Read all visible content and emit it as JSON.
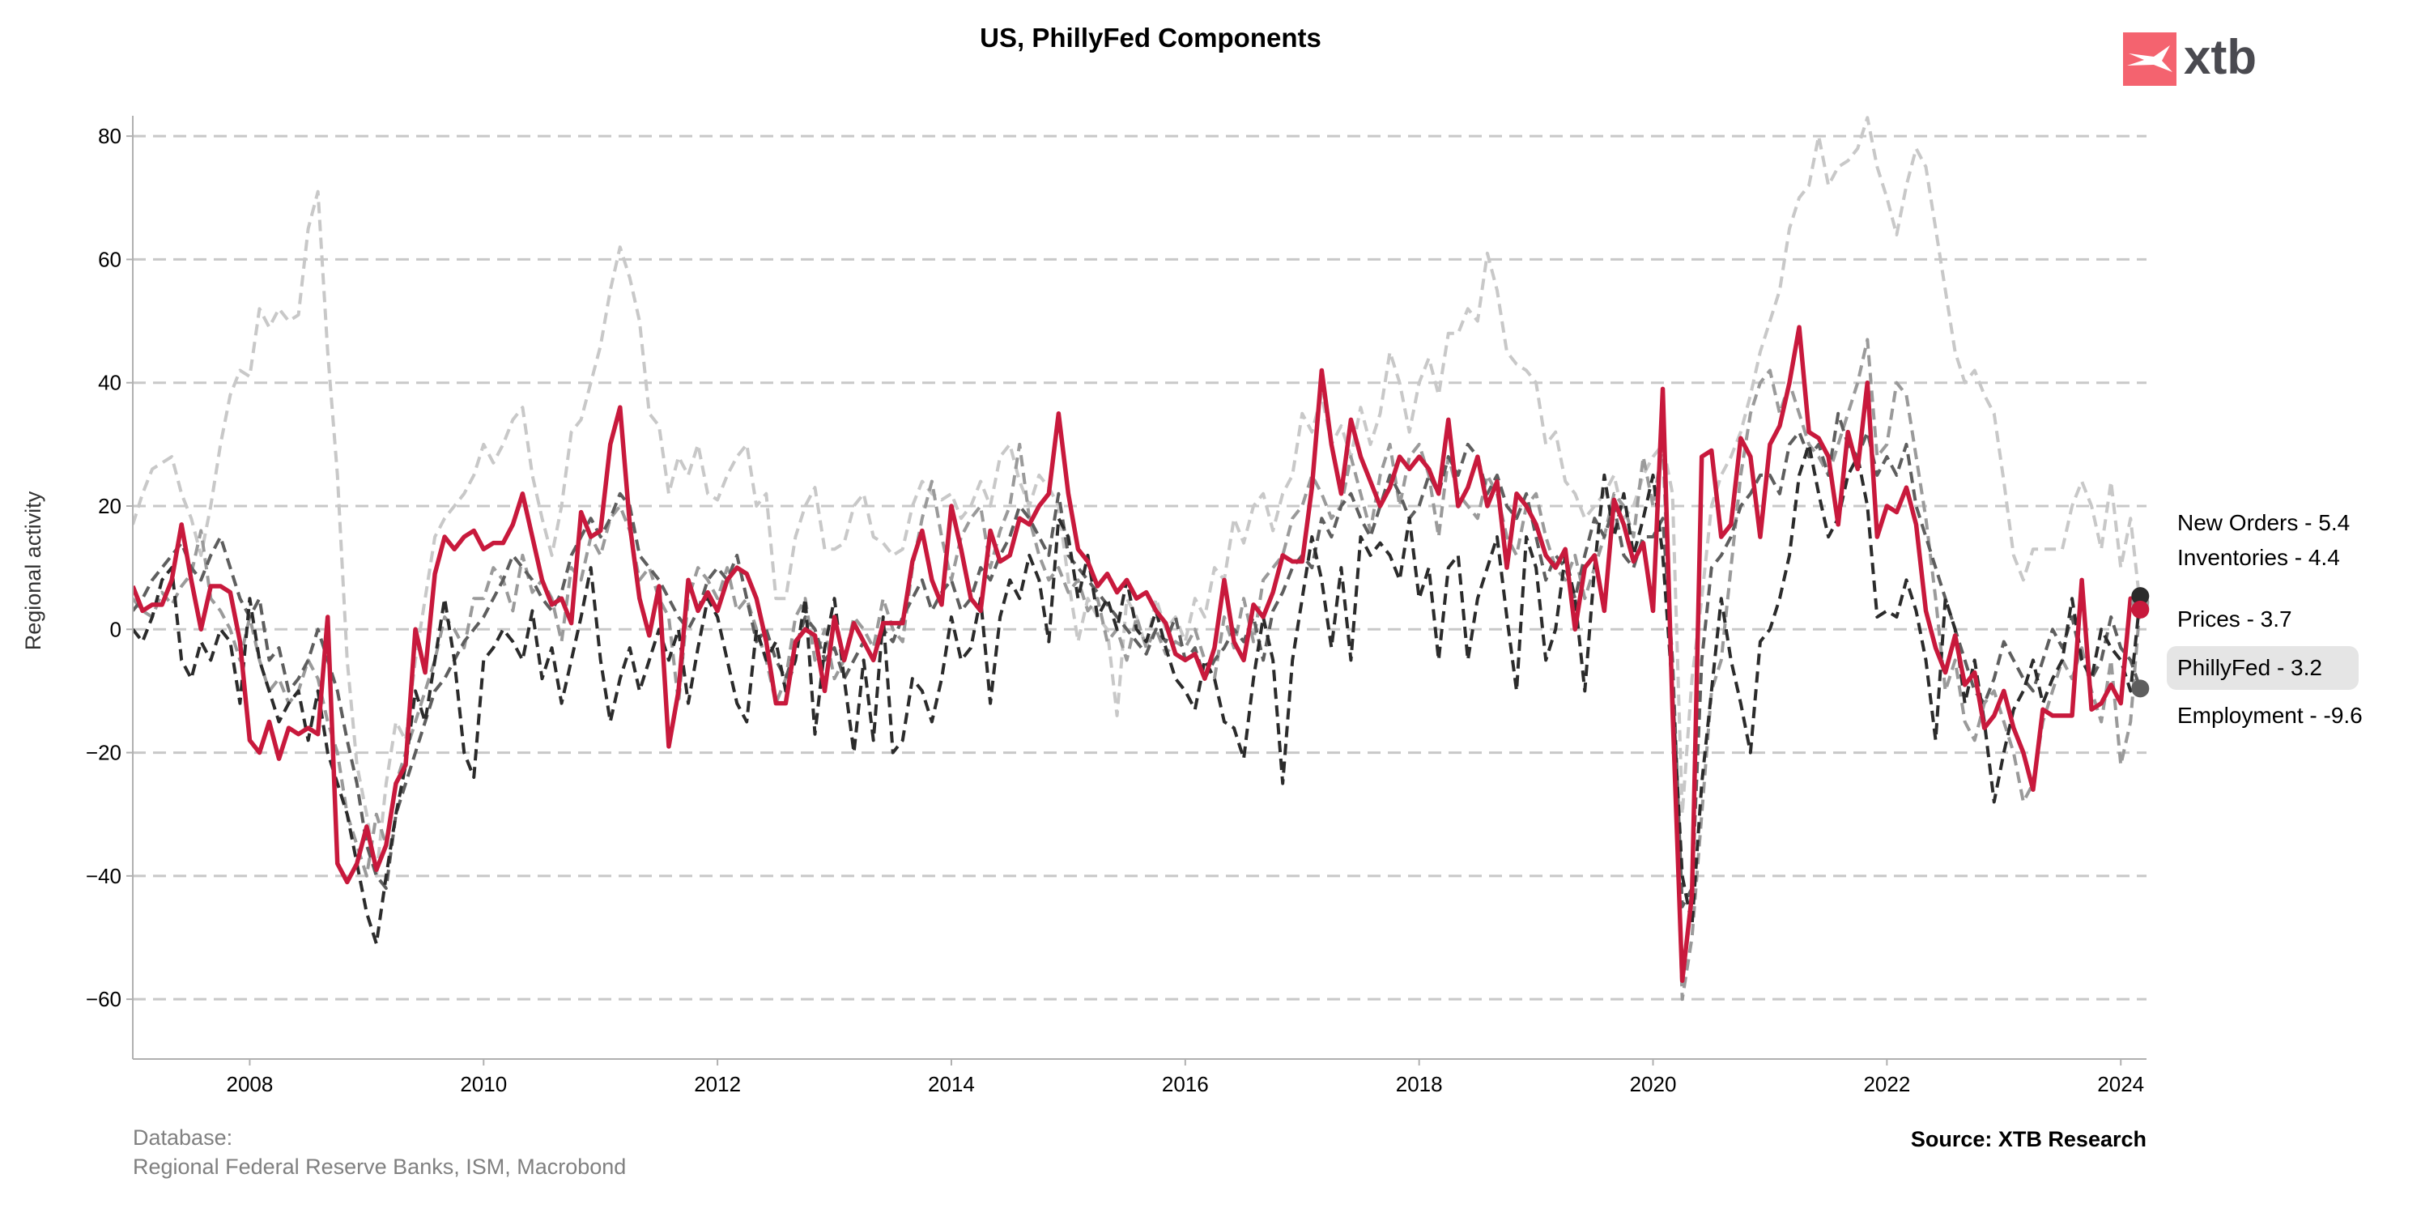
{
  "chart_data": {
    "type": "line",
    "title": "US, PhillyFed Components",
    "xlabel": "",
    "ylabel": "Regional activity",
    "xlim": [
      2007.0,
      2024.22
    ],
    "ylim": [
      -69.7,
      83.3
    ],
    "grid": "horizontal dashed",
    "x_start": "2007-01",
    "frequency": "monthly",
    "x_ticks": [
      "2008",
      "2010",
      "2012",
      "2014",
      "2016",
      "2018",
      "2020",
      "2022",
      "2024"
    ],
    "y_ticks": [
      "80",
      "60",
      "40",
      "20",
      "0",
      "−20",
      "−40",
      "−60"
    ],
    "series": [
      {
        "name": "Prices",
        "label": "Prices - 3.7",
        "color": "#c8c8c8",
        "dashed": true,
        "values": [
          17,
          22,
          26,
          27,
          28,
          22,
          18,
          12,
          20,
          30,
          38,
          42,
          41,
          52,
          49,
          52,
          50,
          51,
          65,
          71,
          45,
          25,
          -5,
          -22,
          -30,
          -40,
          -25,
          -15,
          -18,
          -5,
          5,
          15,
          18,
          20,
          22,
          25,
          30,
          27,
          30,
          34,
          36,
          25,
          18,
          12,
          20,
          32,
          34,
          40,
          46,
          55,
          62,
          57,
          50,
          35,
          33,
          22,
          28,
          25,
          30,
          22,
          21,
          25,
          28,
          30,
          20,
          22,
          5,
          5,
          15,
          20,
          23,
          13,
          13,
          14,
          20,
          22,
          15,
          14,
          12,
          13,
          20,
          24,
          22,
          21,
          22,
          18,
          20,
          24,
          20,
          28,
          30,
          24,
          20,
          25,
          23,
          20,
          8,
          -2,
          5,
          2,
          0,
          -14,
          5,
          2,
          -3,
          5,
          0,
          2,
          -2,
          5,
          2,
          10,
          8,
          18,
          14,
          20,
          22,
          16,
          22,
          25,
          35,
          32,
          38,
          30,
          33,
          28,
          36,
          30,
          35,
          45,
          40,
          32,
          40,
          44,
          38,
          48,
          48,
          52,
          50,
          61,
          55,
          45,
          43,
          42,
          40,
          30,
          32,
          24,
          22,
          18,
          20,
          22,
          25,
          18,
          20,
          25,
          28,
          30,
          22,
          -30,
          -8,
          5,
          20,
          25,
          28,
          32,
          38,
          45,
          50,
          55,
          65,
          70,
          72,
          80,
          72,
          75,
          76,
          78,
          83,
          75,
          70,
          64,
          72,
          78,
          75,
          65,
          55,
          45,
          40,
          42,
          38,
          35,
          24,
          12,
          8,
          13,
          13,
          13,
          13,
          20,
          24,
          20,
          13,
          24,
          10,
          18,
          3.7
        ]
      },
      {
        "name": "Inventories",
        "label": "Inventories - 4.4",
        "color": "#9a9a9a",
        "dashed": true,
        "values": [
          5,
          3,
          2,
          6,
          4,
          7,
          9,
          16,
          5,
          3,
          0,
          -5,
          2,
          -5,
          -10,
          -8,
          -12,
          -10,
          -5,
          -8,
          -15,
          -20,
          -30,
          -35,
          -40,
          -30,
          -35,
          -25,
          -20,
          -15,
          -10,
          -5,
          2,
          0,
          -3,
          5,
          5,
          10,
          8,
          3,
          12,
          6,
          8,
          5,
          -2,
          10,
          8,
          15,
          12,
          18,
          20,
          16,
          8,
          10,
          5,
          2,
          -12,
          5,
          10,
          8,
          5,
          10,
          3,
          5,
          0,
          -5,
          -12,
          -8,
          2,
          5,
          -5,
          0,
          -8,
          -5,
          2,
          0,
          -3,
          5,
          0,
          -2,
          10,
          18,
          24,
          15,
          8,
          15,
          18,
          20,
          10,
          16,
          20,
          30,
          18,
          12,
          8,
          10,
          6,
          8,
          3,
          5,
          -2,
          0,
          -5,
          2,
          -3,
          0,
          -4,
          -2,
          -3,
          0,
          -5,
          -8,
          2,
          -3,
          5,
          -2,
          8,
          10,
          12,
          18,
          20,
          25,
          22,
          18,
          20,
          28,
          22,
          16,
          25,
          30,
          20,
          28,
          30,
          25,
          15,
          28,
          22,
          20,
          18,
          25,
          22,
          15,
          12,
          20,
          22,
          15,
          10,
          8,
          12,
          5,
          10,
          15,
          22,
          20,
          15,
          28,
          20,
          30,
          -10,
          -60,
          -50,
          -30,
          -10,
          -5,
          10,
          25,
          35,
          40,
          42,
          35,
          40,
          35,
          30,
          28,
          25,
          30,
          35,
          40,
          47,
          28,
          30,
          40,
          38,
          28,
          18,
          5,
          -10,
          -5,
          -15,
          -18,
          -12,
          -10,
          -15,
          -20,
          -28,
          -25,
          -15,
          -10,
          -5,
          -8,
          -3,
          -10,
          -15,
          -5,
          -22,
          -15,
          4.4
        ]
      },
      {
        "name": "Employment",
        "label": "Employment - -9.6",
        "color": "#5e5e5e",
        "dashed": true,
        "values": [
          3,
          5,
          8,
          10,
          12,
          14,
          10,
          8,
          12,
          15,
          10,
          5,
          2,
          5,
          -5,
          -3,
          -10,
          -8,
          -5,
          0,
          -5,
          -10,
          -18,
          -25,
          -35,
          -40,
          -42,
          -30,
          -25,
          -20,
          -15,
          -10,
          -8,
          -5,
          -2,
          0,
          2,
          5,
          8,
          12,
          10,
          8,
          5,
          3,
          6,
          12,
          15,
          18,
          15,
          18,
          22,
          20,
          12,
          10,
          8,
          5,
          2,
          0,
          3,
          8,
          10,
          8,
          12,
          5,
          -2,
          0,
          -5,
          -8,
          -3,
          2,
          0,
          -5,
          -3,
          -8,
          -5,
          -2,
          -5,
          0,
          -2,
          2,
          5,
          8,
          3,
          6,
          8,
          3,
          5,
          10,
          8,
          12,
          15,
          20,
          18,
          15,
          12,
          22,
          12,
          10,
          8,
          6,
          4,
          2,
          0,
          -2,
          -4,
          0,
          -2,
          2,
          -5,
          -3,
          -8,
          -5,
          -3,
          0,
          -2,
          2,
          -5,
          3,
          6,
          10,
          12,
          10,
          18,
          15,
          20,
          22,
          18,
          15,
          20,
          25,
          22,
          18,
          20,
          25,
          22,
          28,
          25,
          30,
          28,
          22,
          25,
          20,
          18,
          22,
          15,
          8,
          12,
          10,
          5,
          12,
          18,
          15,
          20,
          12,
          10,
          15,
          15,
          18,
          -5,
          -45,
          -42,
          -5,
          10,
          12,
          15,
          20,
          22,
          25,
          25,
          22,
          30,
          32,
          28,
          30,
          25,
          35,
          30,
          28,
          32,
          25,
          28,
          25,
          30,
          20,
          15,
          10,
          5,
          0,
          -5,
          -10,
          -12,
          -8,
          -2,
          -5,
          -8,
          -10,
          -5,
          0,
          -3,
          2,
          -5,
          -8,
          -5,
          2,
          -3,
          -5,
          -9.6
        ]
      },
      {
        "name": "New Orders",
        "label": "New Orders - 5.4",
        "color": "#2b2b2b",
        "dashed": true,
        "values": [
          0,
          -2,
          2,
          8,
          10,
          -5,
          -8,
          -2,
          -5,
          0,
          -2,
          -12,
          5,
          -5,
          -10,
          -15,
          -12,
          -10,
          -18,
          -10,
          -20,
          -25,
          -30,
          -38,
          -46,
          -51,
          -40,
          -30,
          -22,
          -10,
          -15,
          -5,
          5,
          -5,
          -20,
          -24,
          -5,
          -3,
          0,
          -2,
          -5,
          3,
          -8,
          -3,
          -12,
          -5,
          2,
          10,
          -5,
          -15,
          -8,
          -3,
          -10,
          -5,
          0,
          -5,
          0,
          -12,
          -3,
          5,
          2,
          -5,
          -12,
          -15,
          0,
          -5,
          -2,
          -10,
          -5,
          5,
          -17,
          -3,
          5,
          -8,
          -20,
          -5,
          -18,
          2,
          -20,
          -18,
          -8,
          -10,
          -15,
          -8,
          2,
          -5,
          -3,
          5,
          -12,
          2,
          8,
          5,
          12,
          8,
          -2,
          18,
          15,
          5,
          12,
          2,
          5,
          0,
          8,
          0,
          -2,
          3,
          -3,
          -8,
          -10,
          -13,
          -5,
          -8,
          -15,
          -16,
          -21,
          -8,
          2,
          -5,
          -25,
          -5,
          5,
          15,
          8,
          -3,
          10,
          -5,
          15,
          12,
          14,
          12,
          8,
          18,
          5,
          10,
          -5,
          10,
          12,
          -5,
          5,
          10,
          15,
          2,
          -10,
          15,
          10,
          -5,
          0,
          12,
          5,
          -10,
          10,
          25,
          15,
          22,
          12,
          18,
          25,
          12,
          -10,
          -40,
          -48,
          -25,
          -10,
          5,
          -5,
          -12,
          -20,
          -2,
          0,
          5,
          12,
          25,
          30,
          22,
          15,
          18,
          25,
          28,
          20,
          2,
          3,
          2,
          8,
          3,
          -5,
          -18,
          5,
          0,
          -12,
          -5,
          -15,
          -28,
          -20,
          -13,
          -10,
          -5,
          -12,
          -8,
          -5,
          5,
          -5,
          -8,
          0,
          -3,
          -5,
          -10,
          5.4
        ]
      },
      {
        "name": "PhillyFed",
        "label": "PhillyFed - 3.2",
        "color": "#c8193c",
        "dashed": false,
        "values": [
          7,
          3,
          4,
          4,
          8,
          17,
          8,
          0,
          7,
          7,
          6,
          -2,
          -18,
          -20,
          -15,
          -21,
          -16,
          -17,
          -16,
          -17,
          2,
          -38,
          -41,
          -38,
          -32,
          -39,
          -35,
          -25,
          -22,
          0,
          -7,
          9,
          15,
          13,
          15,
          16,
          13,
          14,
          14,
          17,
          22,
          15,
          8,
          4,
          5,
          1,
          19,
          15,
          16,
          30,
          36,
          17,
          5,
          -1,
          7,
          -19,
          -10,
          8,
          3,
          6,
          3,
          8,
          10,
          9,
          5,
          -2,
          -12,
          -12,
          -2,
          0,
          -1,
          -10,
          2,
          -5,
          1,
          -2,
          -5,
          1,
          1,
          1,
          11,
          16,
          8,
          4,
          20,
          13,
          5,
          3,
          16,
          11,
          12,
          18,
          17,
          20,
          22,
          35,
          22,
          13,
          11,
          7,
          9,
          6,
          8,
          5,
          6,
          3,
          1,
          -4,
          -5,
          -4,
          -8,
          -3,
          8,
          -2,
          -5,
          4,
          2,
          6,
          12,
          11,
          11,
          23,
          42,
          30,
          22,
          34,
          28,
          24,
          20,
          23,
          28,
          26,
          28,
          26,
          22,
          34,
          20,
          23,
          28,
          20,
          24,
          10,
          22,
          20,
          17,
          12,
          10,
          13,
          0,
          10,
          12,
          3,
          21,
          17,
          11,
          14,
          3,
          39,
          -13,
          -57,
          -43,
          28,
          29,
          15,
          17,
          31,
          28,
          15,
          30,
          33,
          40,
          49,
          32,
          31,
          28,
          17,
          32,
          26,
          40,
          15,
          20,
          19,
          23,
          17,
          3,
          -3,
          -7,
          -1,
          -9,
          -7,
          -16,
          -14,
          -10,
          -16,
          -20,
          -26,
          -13,
          -14,
          -14,
          -14,
          8,
          -13,
          -12,
          -9,
          -12,
          5,
          3.2
        ]
      }
    ],
    "legend_order": [
      "New Orders",
      "Inventories",
      "Prices",
      "PhillyFed",
      "Employment"
    ],
    "legend_placement": "right, end-of-line labels"
  },
  "footer": {
    "database_label": "Database:",
    "database_sources": "Regional Federal Reserve Banks, ISM, Macrobond",
    "source": "Source: XTB Research"
  },
  "logo": {
    "text": "xtb",
    "color": "#f4636f"
  }
}
